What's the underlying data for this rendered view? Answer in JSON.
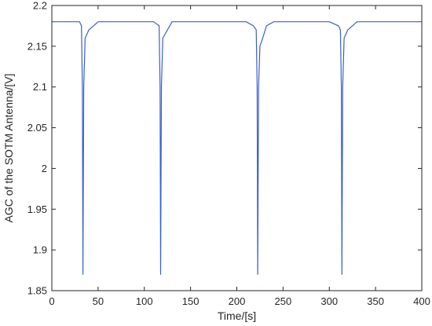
{
  "chart_data": {
    "type": "line",
    "title": "",
    "xlabel": "Time/[s]",
    "ylabel": "AGC of the SOTM Antenna/[V]",
    "xlim": [
      0,
      400
    ],
    "ylim": [
      1.85,
      2.2
    ],
    "xticks": [
      0,
      50,
      100,
      150,
      200,
      250,
      300,
      350,
      400
    ],
    "xtick_labels": [
      "0",
      "50",
      "100",
      "150",
      "200",
      "250",
      "300",
      "350",
      "400"
    ],
    "yticks": [
      1.85,
      1.9,
      1.95,
      2.0,
      2.05,
      2.1,
      2.15,
      2.2
    ],
    "ytick_labels": [
      "1.85",
      "1.9",
      "1.95",
      "2",
      "2.05",
      "2.1",
      "2.15",
      "2.2"
    ],
    "grid": false,
    "line_color": "#3a5fcd",
    "series": [
      {
        "x": [
          0,
          5,
          10,
          15,
          20,
          25,
          30,
          32,
          33,
          33.6,
          34.5,
          36,
          40,
          45,
          50,
          60,
          70,
          80,
          90,
          100,
          110,
          116,
          117,
          117.6,
          118.5,
          120,
          125,
          130,
          140,
          150,
          160,
          170,
          180,
          190,
          200,
          210,
          218,
          221,
          222,
          222.6,
          223.5,
          225,
          228,
          232,
          240,
          250,
          260,
          270,
          280,
          290,
          300,
          310,
          312,
          313,
          313.6,
          314.5,
          316,
          320,
          330,
          340,
          350,
          360,
          370,
          380,
          390,
          400
        ],
        "y": [
          2.18,
          2.18,
          2.18,
          2.18,
          2.18,
          2.18,
          2.18,
          2.175,
          2.1,
          1.87,
          2.1,
          2.16,
          2.17,
          2.175,
          2.18,
          2.18,
          2.18,
          2.18,
          2.18,
          2.18,
          2.18,
          2.175,
          2.1,
          1.87,
          2.1,
          2.16,
          2.17,
          2.18,
          2.18,
          2.18,
          2.18,
          2.18,
          2.18,
          2.18,
          2.18,
          2.18,
          2.175,
          2.17,
          2.1,
          1.87,
          2.1,
          2.15,
          2.16,
          2.175,
          2.18,
          2.18,
          2.18,
          2.18,
          2.18,
          2.18,
          2.18,
          2.175,
          2.17,
          2.1,
          1.87,
          2.1,
          2.16,
          2.17,
          2.18,
          2.18,
          2.18,
          2.18,
          2.18,
          2.18,
          2.18,
          2.18
        ]
      }
    ]
  }
}
